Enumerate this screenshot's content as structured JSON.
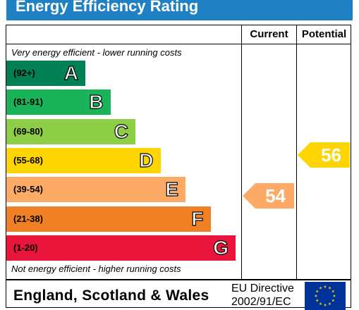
{
  "header": {
    "title": "Energy Efficiency Rating"
  },
  "columns": {
    "current": "Current",
    "potential": "Potential"
  },
  "notes": {
    "top": "Very energy efficient - lower running costs",
    "bottom": "Not energy efficient - higher running costs"
  },
  "footer": {
    "region": "England, Scotland & Wales",
    "directive_line1": "EU Directive",
    "directive_line2": "2002/91/EC",
    "flag_icon": "eu-flag-icon"
  },
  "chart_data": {
    "type": "bar",
    "title": "Energy Efficiency Rating",
    "bands": [
      {
        "letter": "A",
        "range": "(92+)",
        "color": "#008054"
      },
      {
        "letter": "B",
        "range": "(81-91)",
        "color": "#19b459"
      },
      {
        "letter": "C",
        "range": "(69-80)",
        "color": "#8dce46"
      },
      {
        "letter": "D",
        "range": "(55-68)",
        "color": "#ffd500"
      },
      {
        "letter": "E",
        "range": "(39-54)",
        "color": "#fcaa65"
      },
      {
        "letter": "F",
        "range": "(21-38)",
        "color": "#ef8023"
      },
      {
        "letter": "G",
        "range": "(1-20)",
        "color": "#e9153b"
      }
    ],
    "current": {
      "value": 54,
      "band": "E",
      "color": "#fcaa65"
    },
    "potential": {
      "value": 56,
      "band": "D",
      "color": "#ffd500"
    }
  }
}
